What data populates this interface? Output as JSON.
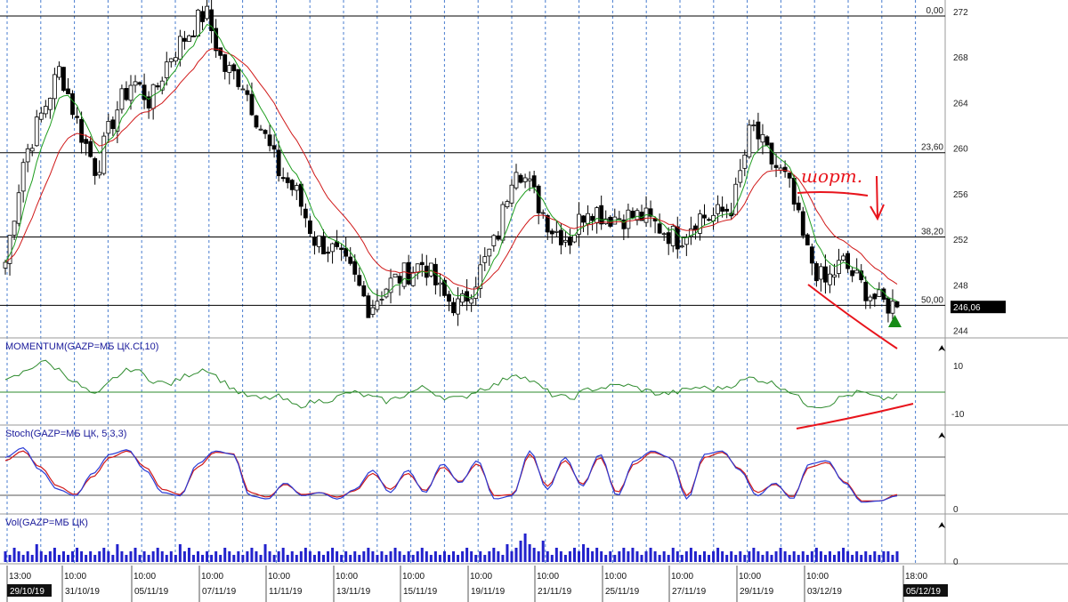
{
  "colors": {
    "grid": "#4a7ecf",
    "candle": "#000000",
    "ma_fast": "#1f9e1f",
    "ma_slow": "#d01818",
    "momentum": "#2e8b2e",
    "stoch_k": "#2a3bd6",
    "stoch_d": "#d01818",
    "volume": "#2222cc",
    "annotation": "#e8141c",
    "signal": "#178c17",
    "price_badge_bg": "#000000",
    "date_badge_bg": "#111111"
  },
  "chart_data": [
    {
      "type": "candlestick",
      "pane": "price",
      "y_ticks": [
        "244",
        "248",
        "252",
        "256",
        "260",
        "264",
        "268",
        "272"
      ],
      "ylim": [
        243.5,
        273
      ],
      "fib_levels": [
        {
          "label": "0,00",
          "value": 271.6
        },
        {
          "label": "23,60",
          "value": 259.6
        },
        {
          "label": "38,20",
          "value": 252.2
        },
        {
          "label": "50,00",
          "value": 246.2
        }
      ],
      "last_price_label": "246,06",
      "last_price": 246.06,
      "annotation_text": "шорт.",
      "candles_ohlc_path": [
        250,
        259,
        263,
        267,
        262,
        258,
        263,
        266,
        264,
        268,
        270,
        272,
        267,
        266,
        262,
        258,
        256,
        252,
        251,
        249,
        246,
        248,
        249,
        250,
        247,
        246,
        249,
        252,
        259,
        256,
        253,
        252,
        255,
        254,
        254,
        254,
        253,
        252,
        254,
        254,
        255,
        262,
        259,
        257,
        251,
        248,
        250,
        248,
        246.5,
        246.06
      ]
    },
    {
      "type": "line",
      "pane": "momentum",
      "title": "MOMENTUM(GAZP=МБ ЦК.Cl,10)",
      "y_ticks": [
        "10",
        "-10"
      ],
      "ylim": [
        -14,
        14
      ],
      "series": [
        {
          "name": "MOMENTUM",
          "values": [
            3,
            7,
            12,
            8,
            2,
            -3,
            5,
            9,
            4,
            2,
            6,
            9,
            3,
            -2,
            -4,
            -3,
            -7,
            -5,
            -4,
            -1,
            -3,
            -5,
            -2,
            1,
            -3,
            -4,
            0,
            2,
            7,
            3,
            -2,
            -4,
            0,
            1,
            2,
            0,
            -2,
            -1,
            1,
            0,
            2,
            5,
            3,
            0,
            -6,
            -7,
            -3,
            -1,
            -4,
            -3
          ]
        }
      ],
      "zero_line": 0
    },
    {
      "type": "line",
      "pane": "stoch",
      "title": "Stoch(GAZP=МБ ЦК, 5,3,3)",
      "y_ticks": [
        "0"
      ],
      "ylim": [
        0,
        100
      ],
      "levels": [
        20,
        80
      ],
      "series": [
        {
          "name": "%K",
          "values": [
            80,
            95,
            60,
            30,
            20,
            55,
            85,
            92,
            60,
            25,
            20,
            70,
            90,
            85,
            20,
            15,
            40,
            20,
            25,
            15,
            30,
            60,
            25,
            60,
            25,
            70,
            40,
            75,
            15,
            20,
            90,
            30,
            80,
            35,
            85,
            20,
            75,
            90,
            80,
            15,
            85,
            90,
            60,
            20,
            40,
            15,
            70,
            75,
            40,
            10,
            12,
            20
          ]
        },
        {
          "name": "%D",
          "values": [
            75,
            90,
            65,
            35,
            22,
            50,
            80,
            90,
            65,
            30,
            22,
            65,
            88,
            86,
            25,
            18,
            38,
            22,
            25,
            18,
            28,
            55,
            30,
            55,
            28,
            65,
            42,
            70,
            20,
            22,
            85,
            35,
            75,
            38,
            80,
            25,
            70,
            88,
            80,
            20,
            80,
            88,
            62,
            25,
            38,
            18,
            65,
            72,
            42,
            12,
            12,
            22
          ]
        }
      ]
    },
    {
      "type": "bar",
      "pane": "volume",
      "title": "Vol(GAZP=МБ ЦК)",
      "y_ticks": [
        "0"
      ],
      "values": [
        3,
        2,
        4,
        3,
        2,
        3,
        2,
        5,
        3,
        2,
        3,
        4,
        2,
        3,
        2,
        3,
        4,
        3,
        2,
        3,
        2,
        3,
        4,
        3,
        2,
        5,
        3,
        2,
        3,
        4,
        2,
        3,
        2,
        3,
        4,
        3,
        2,
        3,
        2,
        5,
        3,
        4,
        2,
        3,
        2,
        3,
        2,
        3,
        2,
        4,
        3,
        2,
        3,
        2,
        3,
        4,
        3,
        2,
        5,
        3,
        2,
        3,
        4,
        2,
        3,
        2,
        3,
        4,
        3,
        2,
        3,
        2,
        3,
        4,
        3,
        2,
        3,
        2,
        3,
        2,
        3,
        4,
        3,
        2,
        3,
        2,
        3,
        4,
        3,
        2,
        3,
        2,
        3,
        4,
        3,
        2,
        3,
        2,
        3,
        2,
        3,
        2,
        3,
        4,
        3,
        2,
        3,
        2,
        3,
        4,
        3,
        2,
        5,
        3,
        4,
        6,
        8,
        5,
        4,
        3,
        6,
        3,
        2,
        4,
        3,
        2,
        3,
        4,
        3,
        5,
        4,
        3,
        4,
        3,
        2,
        3,
        2,
        3,
        4,
        3,
        4,
        3,
        2,
        3,
        4,
        3,
        2,
        3,
        2,
        4,
        3,
        2,
        3,
        4,
        3,
        2,
        3,
        2,
        3,
        4,
        3,
        2,
        3,
        2,
        3,
        2,
        3,
        4,
        3,
        2,
        3,
        2,
        3,
        4,
        3,
        2,
        3,
        2,
        3,
        2,
        3,
        4,
        3,
        2,
        3,
        2,
        3,
        4,
        3,
        2,
        3,
        2,
        3,
        2,
        3,
        2,
        3,
        3,
        2,
        3
      ]
    }
  ],
  "time_axis": {
    "time_labels": [
      "13:00",
      "10:00",
      "10:00",
      "10:00",
      "10:00",
      "10:00",
      "10:00",
      "10:00",
      "10:00",
      "10:00",
      "10:00",
      "10:00",
      "10:00",
      "18:00"
    ],
    "date_labels": [
      "29/10/19",
      "31/10/19",
      "05/11/19",
      "07/11/19",
      "11/11/19",
      "13/11/19",
      "15/11/19",
      "19/11/19",
      "21/11/19",
      "25/11/19",
      "27/11/19",
      "29/11/19",
      "03/12/19",
      "05/12/19"
    ],
    "highlighted_first": "29/10/19",
    "highlighted_last": "05/12/19"
  }
}
